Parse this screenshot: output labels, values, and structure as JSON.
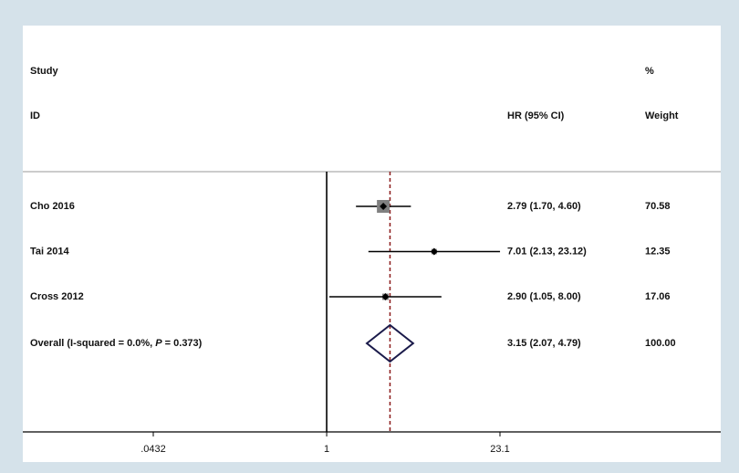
{
  "chart_data": {
    "type": "forest",
    "log_scale": true,
    "headers": {
      "study": "Study",
      "id": "ID",
      "effect": "HR (95% CI)",
      "percent": "%",
      "weight": "Weight"
    },
    "categories": [
      "Cho 2016",
      "Tai 2014",
      "Cross 2012"
    ],
    "values": [
      2.79,
      7.01,
      2.9
    ],
    "lower": [
      1.7,
      2.13,
      1.05
    ],
    "upper": [
      4.6,
      23.12,
      8.0
    ],
    "value_labels": [
      "2.79 (1.70, 4.60)",
      "7.01 (2.13, 23.12)",
      "2.90 (1.05, 8.00)"
    ],
    "weights": [
      70.58,
      12.35,
      17.06
    ],
    "overall": {
      "label": [
        "Overall  (I-squared = 0.0%, ",
        "P",
        " = 0.373)"
      ],
      "value": 3.15,
      "lower": 2.07,
      "upper": 4.79,
      "value_label": "3.15 (2.07, 4.79)",
      "weight": {
        "value": 100,
        "label": "100.00"
      }
    },
    "xlim": [
      0.0432,
      23.1
    ],
    "xticks": [
      {
        "value": 0.0432,
        "label": ".0432"
      },
      1,
      23.1
    ],
    "square_color": "#808080",
    "point_color": "#000000",
    "overall_color": "#1a1a4a",
    "overall_line_color": "#8b1a1a"
  }
}
